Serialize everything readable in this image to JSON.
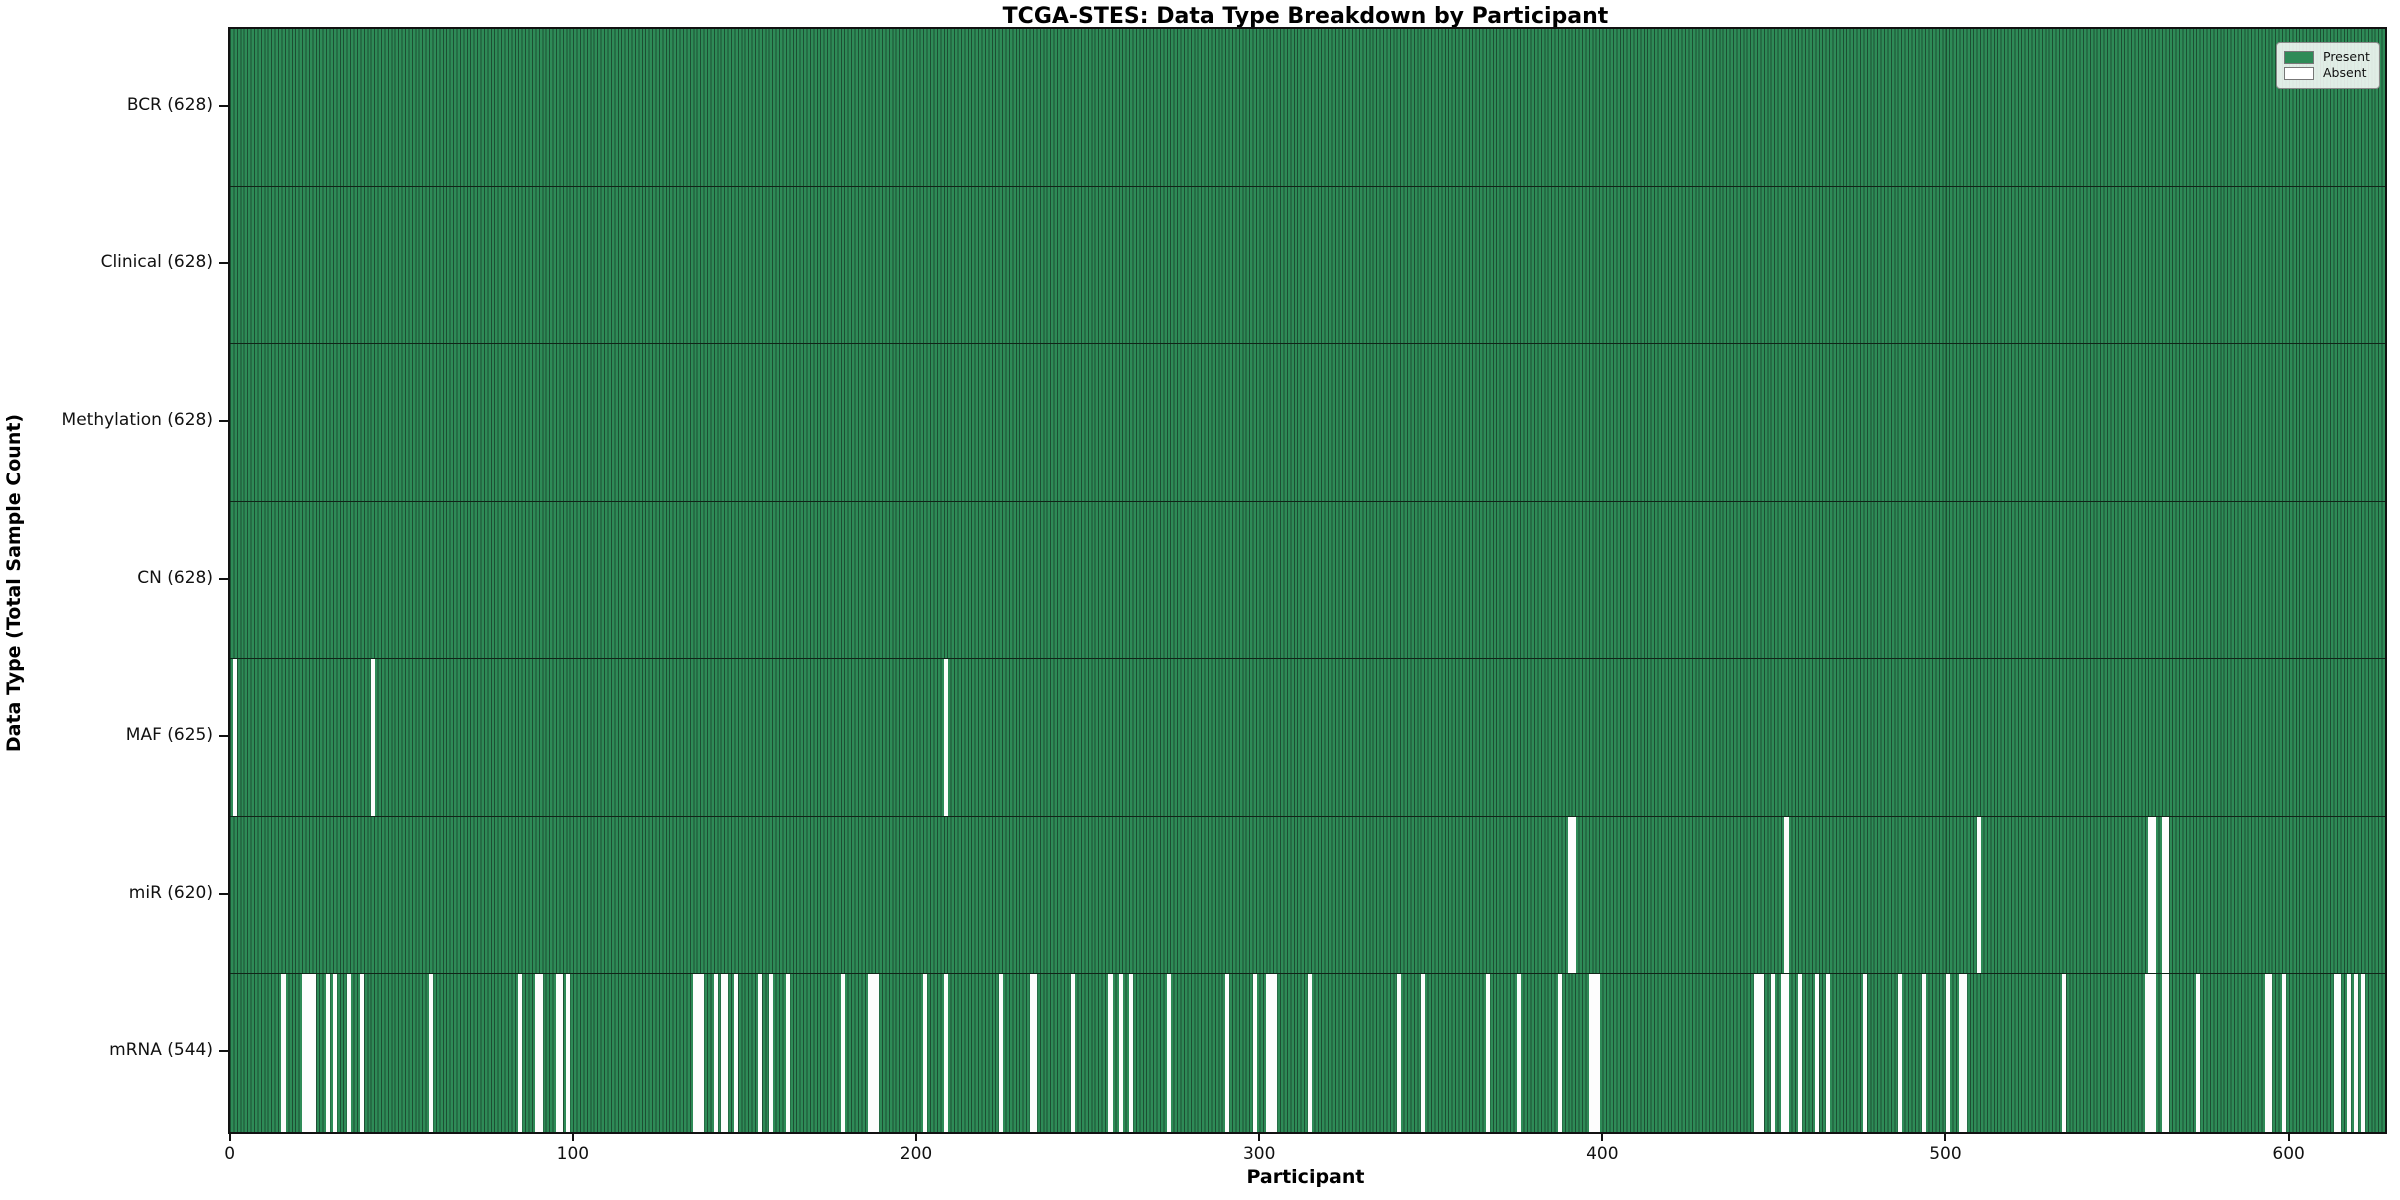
{
  "chart_data": {
    "type": "heatmap",
    "title": "TCGA-STES: Data Type Breakdown by Participant",
    "xlabel": "Participant",
    "ylabel": "Data Type (Total Sample Count)",
    "n_participants": 628,
    "x_ticks": [
      0,
      100,
      200,
      300,
      400,
      500,
      600
    ],
    "x_tick_labels": [
      "0",
      "100",
      "200",
      "300",
      "400",
      "500",
      "600"
    ],
    "legend_position": "upper right",
    "legend": [
      {
        "label": "Present",
        "color": "#2e8b57"
      },
      {
        "label": "Absent",
        "color": "#ffffff"
      }
    ],
    "present_color": "#2e8b57",
    "present_edge_color": "#1c4f33",
    "absent_color": "#fdfdfd",
    "rows": [
      {
        "label": "BCR",
        "count": 628,
        "display": "BCR (628)",
        "absent": []
      },
      {
        "label": "Clinical",
        "count": 628,
        "display": "Clinical (628)",
        "absent": []
      },
      {
        "label": "Methylation",
        "count": 628,
        "display": "Methylation (628)",
        "absent": []
      },
      {
        "label": "CN",
        "count": 628,
        "display": "CN (628)",
        "absent": []
      },
      {
        "label": "MAF",
        "count": 625,
        "display": "MAF (625)",
        "absent": [
          1,
          41,
          208
        ]
      },
      {
        "label": "miR",
        "count": 620,
        "display": "miR (620)",
        "absent": [
          390,
          391,
          453,
          509,
          559,
          560,
          563,
          564
        ]
      },
      {
        "label": "mRNA",
        "count": 544,
        "display": "mRNA (544)",
        "absent": [
          15,
          21,
          22,
          23,
          24,
          28,
          30,
          34,
          38,
          58,
          84,
          89,
          90,
          95,
          96,
          98,
          135,
          136,
          137,
          141,
          143,
          144,
          147,
          154,
          157,
          162,
          178,
          186,
          187,
          188,
          202,
          208,
          224,
          233,
          234,
          245,
          256,
          259,
          262,
          273,
          290,
          298,
          302,
          303,
          304,
          314,
          340,
          347,
          366,
          375,
          387,
          396,
          397,
          398,
          444,
          445,
          446,
          449,
          452,
          453,
          457,
          462,
          465,
          476,
          486,
          493,
          500,
          504,
          505,
          534,
          558,
          559,
          560,
          563,
          564,
          573,
          593,
          594,
          598,
          613,
          614,
          617,
          619,
          621
        ]
      }
    ]
  }
}
